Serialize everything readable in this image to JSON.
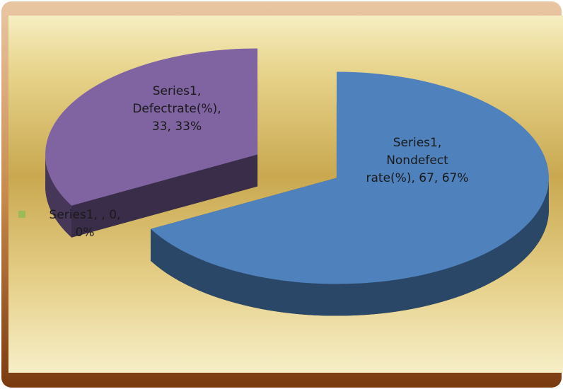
{
  "chart_data": {
    "type": "pie3d",
    "values": [
      67,
      33,
      0
    ],
    "value_labels": [
      "Series1, Nondefect rate(%), 67, 67%",
      "Series1, Defectrate(%), 33, 33%",
      "Series1, , 0, 0%"
    ],
    "colors": [
      "#4f81bd",
      "#8064a2",
      "#9bbb59"
    ]
  }
}
